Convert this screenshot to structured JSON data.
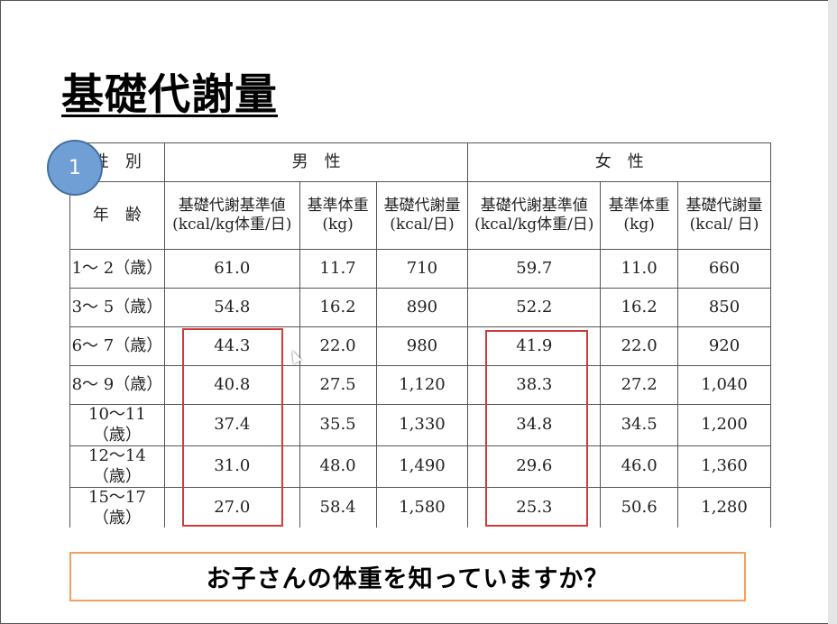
{
  "slide": {
    "title": "基礎代謝量",
    "badge_number": "1",
    "note": "お子さんの体重を知っていますか？",
    "highlight_color": "#d03a3a",
    "note_border_color": "#f0a060",
    "badge_color": "#6f9fd4"
  },
  "table": {
    "sex_label": "性　別",
    "age_label": "年　齢",
    "male_label": "男　性",
    "female_label": "女　性",
    "columns": [
      {
        "line1": "基礎代謝基準値",
        "line2": "(kcal/kg体重/日)"
      },
      {
        "line1": "基準体重",
        "line2": "(kg)"
      },
      {
        "line1": "基礎代謝量",
        "line2": "(kcal/日)"
      },
      {
        "line1": "基礎代謝基準値",
        "line2": "(kcal/kg体重/日)"
      },
      {
        "line1": "基準体重",
        "line2": "(kg)"
      },
      {
        "line1": "基礎代謝量",
        "line2": "(kcal/ 日)"
      }
    ],
    "rows": [
      [
        "1～ 2（歳）",
        "61.0",
        "11.7",
        "710",
        "59.7",
        "11.0",
        "660"
      ],
      [
        "3～ 5（歳）",
        "54.8",
        "16.2",
        "890",
        "52.2",
        "16.2",
        "850"
      ],
      [
        "6～ 7（歳）",
        "44.3",
        "22.0",
        "980",
        "41.9",
        "22.0",
        "920"
      ],
      [
        "8～ 9（歳）",
        "40.8",
        "27.5",
        "1,120",
        "38.3",
        "27.2",
        "1,040"
      ],
      [
        "10～11（歳）",
        "37.4",
        "35.5",
        "1,330",
        "34.8",
        "34.5",
        "1,200"
      ],
      [
        "12～14（歳）",
        "31.0",
        "48.0",
        "1,490",
        "29.6",
        "46.0",
        "1,360"
      ],
      [
        "15～17（歳）",
        "27.0",
        "58.4",
        "1,580",
        "25.3",
        "50.6",
        "1,280"
      ]
    ]
  }
}
